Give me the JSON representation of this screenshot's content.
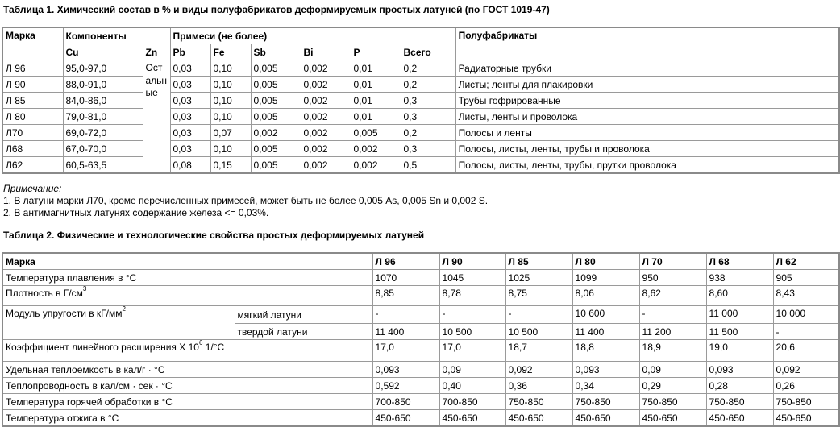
{
  "table1": {
    "title": "Таблица 1. Химический состав в % и виды полуфабрикатов деформируемых простых латуней (по ГОСТ 1019-47)",
    "headers": {
      "grade": "Марка",
      "components": "Компоненты",
      "impurities": "Примеси (не более)",
      "products": "Полуфабрикаты",
      "cu": "Cu",
      "zn": "Zn",
      "pb": "Pb",
      "fe": "Fe",
      "sb": "Sb",
      "bi": "Bi",
      "p": "P",
      "total": "Всего"
    },
    "zn_value": "Остальные",
    "rows": [
      {
        "grade": "Л 96",
        "cu": "95,0-97,0",
        "pb": "0,03",
        "fe": "0,10",
        "sb": "0,005",
        "bi": "0,002",
        "p": "0,01",
        "total": "0,2",
        "products": "Радиаторные трубки"
      },
      {
        "grade": "Л 90",
        "cu": "88,0-91,0",
        "pb": "0,03",
        "fe": "0,10",
        "sb": "0,005",
        "bi": "0,002",
        "p": "0,01",
        "total": "0,2",
        "products": "Листы; ленты для плакировки"
      },
      {
        "grade": "Л 85",
        "cu": "84,0-86,0",
        "pb": "0,03",
        "fe": "0,10",
        "sb": "0,005",
        "bi": "0,002",
        "p": "0,01",
        "total": "0,3",
        "products": "Трубы гофрированные"
      },
      {
        "grade": "Л 80",
        "cu": "79,0-81,0",
        "pb": "0,03",
        "fe": "0,10",
        "sb": "0,005",
        "bi": "0,002",
        "p": "0,01",
        "total": "0,3",
        "products": "Листы, ленты и проволока"
      },
      {
        "grade": "Л70",
        "cu": "69,0-72,0",
        "pb": "0,03",
        "fe": "0,07",
        "sb": "0,002",
        "bi": "0,002",
        "p": "0,005",
        "total": "0,2",
        "products": "Полосы и ленты"
      },
      {
        "grade": "Л68",
        "cu": "67,0-70,0",
        "pb": "0,03",
        "fe": "0,10",
        "sb": "0,005",
        "bi": "0,002",
        "p": "0,002",
        "total": "0,3",
        "products": "Полосы, листы, ленты, трубы и проволока"
      },
      {
        "grade": "Л62",
        "cu": "60,5-63,5",
        "pb": "0,08",
        "fe": "0,15",
        "sb": "0,005",
        "bi": "0,002",
        "p": "0,002",
        "total": "0,5",
        "products": "Полосы, листы, ленты, трубы, прутки проволока"
      }
    ]
  },
  "notes": {
    "heading": "Примечание:",
    "items": [
      "1. В латуни марки Л70, кроме перечисленных примесей, может быть не более 0,005 As, 0,005 Sn и 0,002 S.",
      "2. В антимагнитных латунях содержание железа <= 0,03%."
    ]
  },
  "table2": {
    "title": "Таблица 2. Физические и технологические свойства простых деформируемых латуней",
    "grade_label": "Марка",
    "grades": [
      "Л 96",
      "Л 90",
      "Л 85",
      "Л 80",
      "Л 70",
      "Л 68",
      "Л 62"
    ],
    "rows": [
      {
        "label": "Температура плавления в °С",
        "values": [
          "1070",
          "1045",
          "1025",
          "1099",
          "950",
          "938",
          "905"
        ]
      },
      {
        "label": "Плотность в Г/см",
        "sup": "3",
        "values": [
          "8,85",
          "8,78",
          "8,75",
          "8,06",
          "8,62",
          "8,60",
          "8,43"
        ]
      },
      {
        "label": "Модуль упругости в кГ/мм",
        "sup": "2",
        "sub_label": "мягкий латуни",
        "values": [
          "-",
          "-",
          "-",
          "10 600",
          "-",
          "11 000",
          "10 000"
        ]
      },
      {
        "sub_label": "твердой латуни",
        "values": [
          "11 400",
          "10 500",
          "10 500",
          "11 400",
          "11 200",
          "11 500",
          "-"
        ]
      },
      {
        "label": "Коэффициент линейного расширения Х 10",
        "sup": "6",
        "label_tail": " 1/°С",
        "values": [
          "17,0",
          "17,0",
          "18,7",
          "18,8",
          "18,9",
          "19,0",
          "20,6"
        ]
      },
      {
        "label": "Удельная теплоемкость в кал/г · °С",
        "values": [
          "0,093",
          "0,09",
          "0,092",
          "0,093",
          "0,09",
          "0,093",
          "0,092"
        ]
      },
      {
        "label": "Теплопроводность в кал/см · сек · °С",
        "values": [
          "0,592",
          "0,40",
          "0,36",
          "0,34",
          "0,29",
          "0,28",
          "0,26"
        ]
      },
      {
        "label": "Температура горячей обработки в °С",
        "values": [
          "700-850",
          "700-850",
          "750-850",
          "750-850",
          "750-850",
          "750-850",
          "750-850"
        ]
      },
      {
        "label": "Температура отжига в °С",
        "values": [
          "450-650",
          "450-650",
          "450-650",
          "450-650",
          "450-650",
          "450-650",
          "450-650"
        ]
      }
    ]
  }
}
